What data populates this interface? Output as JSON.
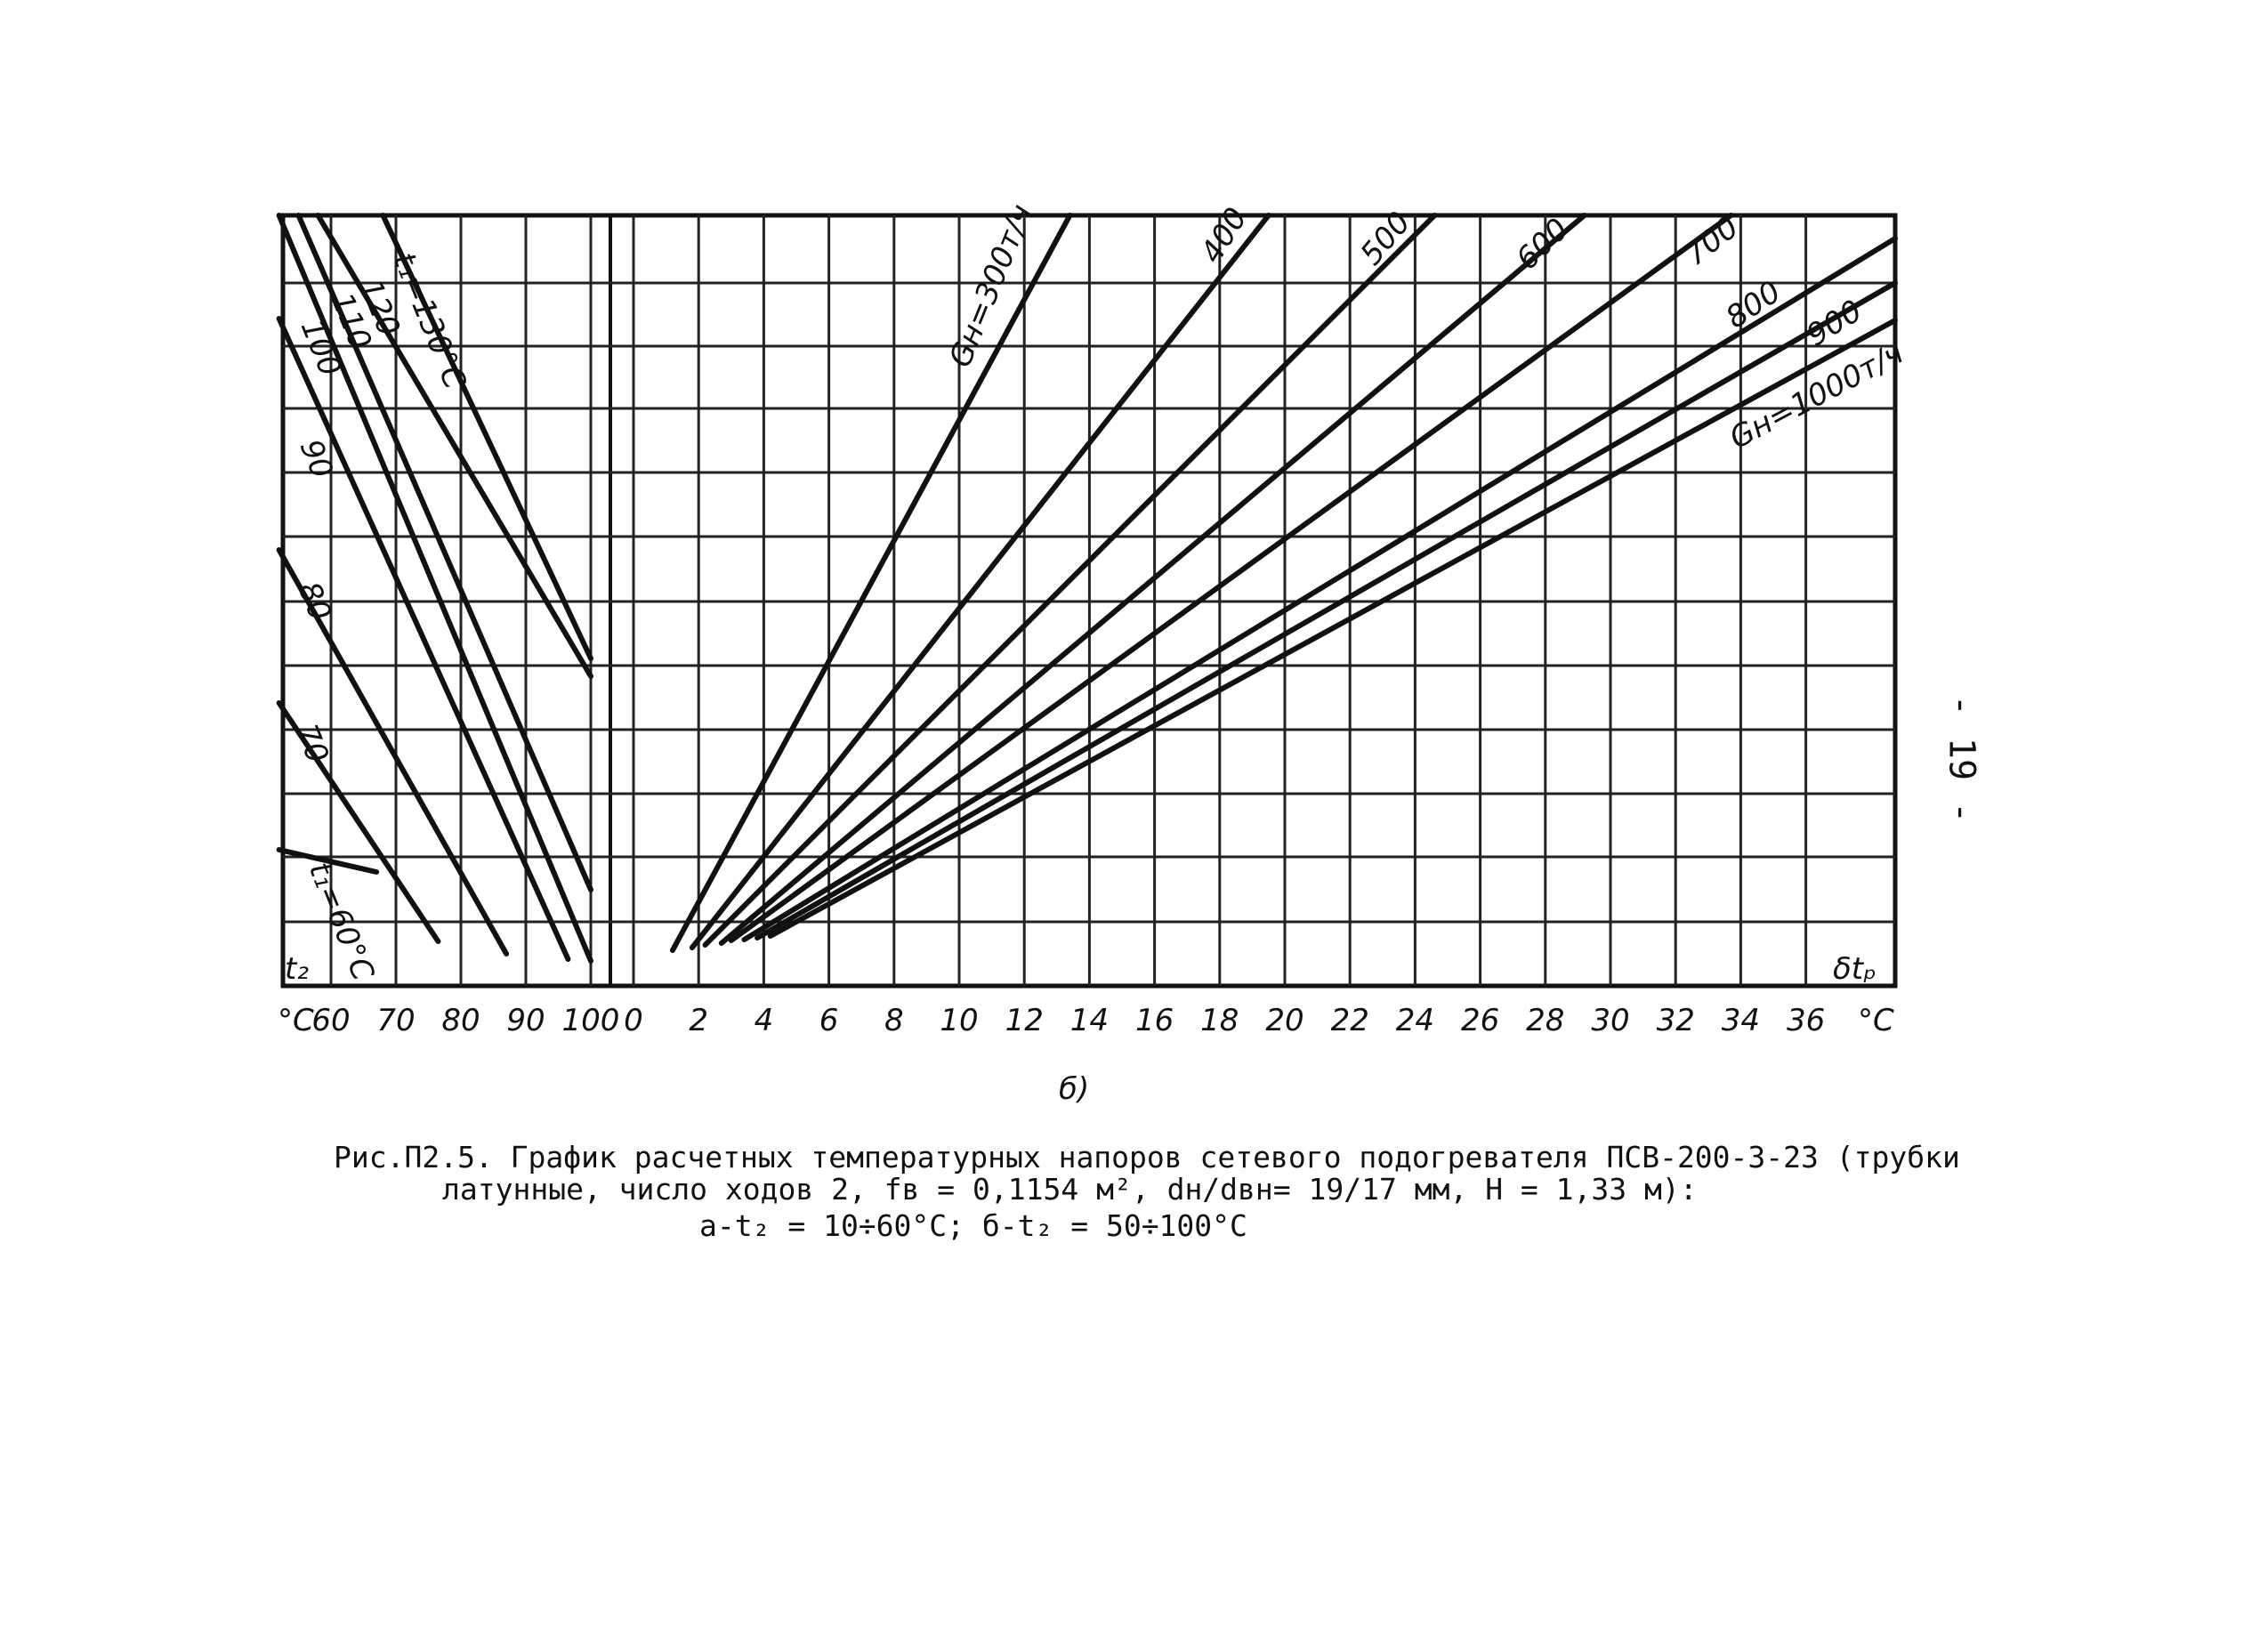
{
  "page": {
    "sub_label": "б)",
    "page_number": "- 19 -"
  },
  "caption": {
    "line1": "Рис.П2.5. График расчетных температурных напоров сетевого подогревателя ПСВ-200-3-23 (трубки",
    "line2": "латунные, число  ходов 2, fв = 0,1154 м², dн/dвн= 19/17 мм, H = 1,33 м):",
    "line3": "а-t₂ = 10÷60°С; б-t₂ = 50÷100°С"
  },
  "chart_data": [
    {
      "type": "line",
      "panel": "left",
      "xlabel": "°C",
      "ylabel": "t₂",
      "x_ticks": [
        "60",
        "70",
        "80",
        "90",
        "100"
      ],
      "xlim": [
        52,
        101
      ],
      "series": [
        {
          "name": "t₁=60°C",
          "label": "t₁=60°C",
          "x": [
            52,
            67
          ]
        },
        {
          "name": "70",
          "label": "70",
          "x": [
            52,
            76.5
          ]
        },
        {
          "name": "80",
          "label": "80",
          "x": [
            52,
            87
          ]
        },
        {
          "name": "90",
          "label": "90",
          "x": [
            52,
            96.5
          ]
        },
        {
          "name": "100",
          "label": "100",
          "x": [
            52,
            100
          ]
        },
        {
          "name": "110",
          "label": "110",
          "x": [
            55,
            100
          ]
        },
        {
          "name": "120",
          "label": "120",
          "x": [
            58,
            100
          ]
        },
        {
          "name": "t₁=130°C",
          "label": "t₁=130°C",
          "x": [
            68,
            100
          ]
        }
      ]
    },
    {
      "type": "line",
      "panel": "right",
      "xlabel": "°C",
      "ylabel": "δtₚ",
      "x_ticks": [
        "0",
        "2",
        "4",
        "6",
        "8",
        "10",
        "12",
        "14",
        "16",
        "18",
        "20",
        "22",
        "24",
        "26",
        "28",
        "30",
        "32",
        "34",
        "36"
      ],
      "xlim": [
        -0.5,
        39
      ],
      "series": [
        {
          "name": "Gн=300т/ч",
          "label": "Gн=300т/ч",
          "x_bottom": 1.2,
          "x_top": 13.4
        },
        {
          "name": "400",
          "label": "400",
          "x_bottom": 1.8,
          "x_top": 19.5
        },
        {
          "name": "500",
          "label": "500",
          "x_bottom": 2.2,
          "x_top": 24.6
        },
        {
          "name": "600",
          "label": "600",
          "x_bottom": 2.7,
          "x_top": 29.2
        },
        {
          "name": "700",
          "label": "700",
          "x_bottom": 3.0,
          "x_top": 33.7
        },
        {
          "name": "800",
          "label": "800",
          "x_bottom": 3.4,
          "x_top": 39
        },
        {
          "name": "900",
          "label": "900",
          "x_bottom": 3.8,
          "x_top": 39
        },
        {
          "name": "Gн=1000т/ч",
          "label": "Gн=1000т/ч",
          "x_bottom": 4.2,
          "x_top": 39
        }
      ]
    }
  ]
}
